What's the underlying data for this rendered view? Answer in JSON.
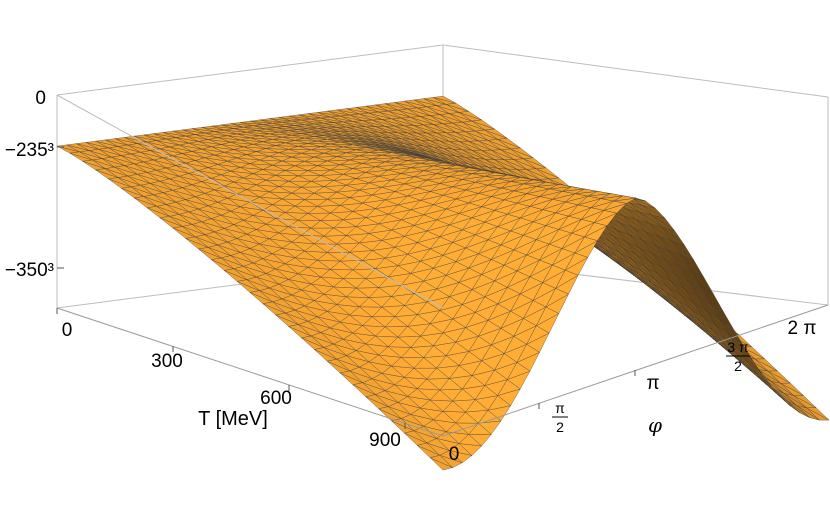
{
  "chart_data": {
    "type": "surface3d",
    "title": "",
    "x_axis": {
      "label": "T [MeV]",
      "range": [
        0,
        1000
      ],
      "ticks": [
        {
          "value": 0,
          "label": "0"
        },
        {
          "value": 300,
          "label": "300"
        },
        {
          "value": 600,
          "label": "600"
        },
        {
          "value": 900,
          "label": "900"
        }
      ]
    },
    "y_axis": {
      "label": "φ",
      "range_label": "0 to 2π",
      "ticks": [
        {
          "label": "0"
        },
        {
          "label_num": "π",
          "label_den": "2"
        },
        {
          "label": "π"
        },
        {
          "label_num": "3 π",
          "label_den": "2"
        },
        {
          "label": "2 π"
        }
      ]
    },
    "z_axis": {
      "label": "",
      "ticks": [
        {
          "label": "0"
        },
        {
          "label": "−235³"
        },
        {
          "label": "−350³"
        }
      ]
    },
    "surface": {
      "color": "#f0a030",
      "mesh_color": "#3a3a3a",
      "description_values": {
        "T_MeV": [
          0,
          100,
          200,
          300,
          400,
          500,
          600,
          700,
          800,
          900,
          1000
        ],
        "phi_fraction_of_2pi": [
          0,
          0.25,
          0.5,
          0.75,
          1.0
        ],
        "value_at_T0": "−235³ (constant in φ)",
        "value_at_phi0_T1000": "below −350³",
        "value_at_phi_pi_T1000": "near 0"
      }
    }
  }
}
